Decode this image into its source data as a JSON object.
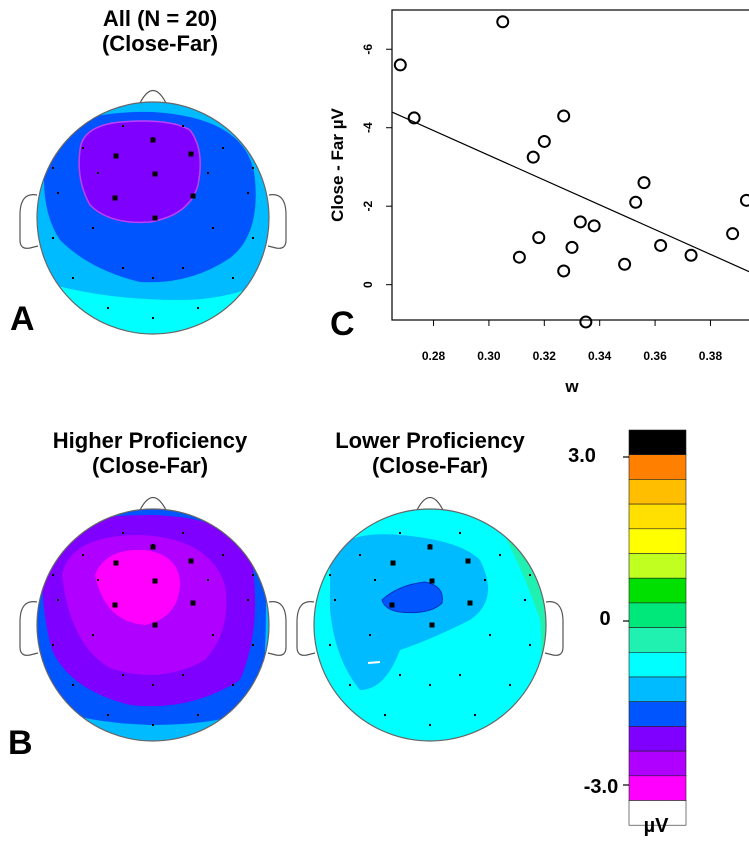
{
  "panel_a": {
    "title1": "All (N = 20)",
    "title2": "(Close-Far)",
    "label": "A"
  },
  "panel_b": {
    "label": "B",
    "higher": {
      "title1": "Higher Proficiency",
      "title2": "(Close-Far)"
    },
    "lower": {
      "title1": "Lower Proficiency",
      "title2": "(Close-Far)"
    }
  },
  "panel_c": {
    "label": "C"
  },
  "colorbar": {
    "unit": "µV",
    "tick_top": "3.0",
    "tick_mid": "0",
    "tick_bottom": "-3.0",
    "colors": [
      "#000000",
      "#ff8000",
      "#ffbf00",
      "#ffe000",
      "#ffff00",
      "#c0ff20",
      "#00e000",
      "#00e87a",
      "#20f0b0",
      "#00ffff",
      "#00bbff",
      "#0055ff",
      "#8000ff",
      "#b000ff",
      "#ff00ff",
      "#ffffff"
    ]
  },
  "chart_data": {
    "type": "scatter",
    "xlabel": "w",
    "ylabel": "Close - Far  µV",
    "xlim": [
      0.265,
      0.395
    ],
    "ylim": [
      0.9,
      -7.0
    ],
    "xticks": [
      0.28,
      0.3,
      0.32,
      0.34,
      0.36,
      0.38
    ],
    "xtick_labels": [
      "0.28",
      "0.30",
      "0.32",
      "0.34",
      "0.36",
      "0.38"
    ],
    "yticks": [
      0,
      -2,
      -4,
      -6
    ],
    "ytick_labels": [
      "0",
      "-2",
      "-4",
      "-6"
    ],
    "points": [
      {
        "x": 0.268,
        "y": -5.6
      },
      {
        "x": 0.273,
        "y": -4.25
      },
      {
        "x": 0.305,
        "y": -6.7
      },
      {
        "x": 0.311,
        "y": -0.7
      },
      {
        "x": 0.316,
        "y": -3.25
      },
      {
        "x": 0.318,
        "y": -1.2
      },
      {
        "x": 0.32,
        "y": -3.65
      },
      {
        "x": 0.327,
        "y": -4.3
      },
      {
        "x": 0.327,
        "y": -0.35
      },
      {
        "x": 0.33,
        "y": -0.95
      },
      {
        "x": 0.333,
        "y": -1.6
      },
      {
        "x": 0.335,
        "y": 0.95
      },
      {
        "x": 0.338,
        "y": -1.5
      },
      {
        "x": 0.349,
        "y": -0.52
      },
      {
        "x": 0.353,
        "y": -2.1
      },
      {
        "x": 0.356,
        "y": -2.6
      },
      {
        "x": 0.362,
        "y": -1.0
      },
      {
        "x": 0.373,
        "y": -0.75
      },
      {
        "x": 0.388,
        "y": -1.3
      },
      {
        "x": 0.393,
        "y": -2.15
      }
    ],
    "fit_line": {
      "x": [
        0.265,
        0.395
      ],
      "y": [
        -4.4,
        -0.3
      ]
    }
  }
}
